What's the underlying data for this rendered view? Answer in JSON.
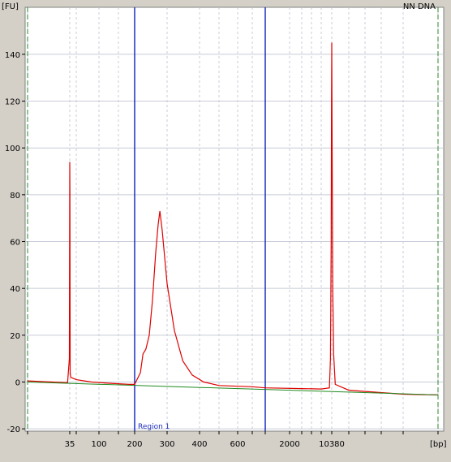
{
  "chart_data": {
    "type": "line",
    "title": "NN DNA",
    "xlabel": "[bp]",
    "ylabel": "[FU]",
    "x_scale": "sizing ladder (non-linear)",
    "ylim": [
      -20,
      150
    ],
    "y_ticks": [
      -20,
      0,
      20,
      40,
      60,
      80,
      100,
      120,
      140
    ],
    "x_tick_labels": [
      "35",
      "100",
      "200",
      "300",
      "400",
      "600",
      "2000",
      "10380"
    ],
    "grid": true,
    "region": {
      "label": "Region 1",
      "start_bp": 200,
      "end_bp": 1000,
      "color": "#1f2fbf"
    },
    "markers": {
      "lower_bp": 35,
      "upper_bp": 10380,
      "color": "#2a8a2a"
    },
    "colors": {
      "trace": "#e00000",
      "baseline": "#1f8a1f",
      "plot_bg": "#ffffff",
      "frame_bg": "#d4d0c8",
      "grid": "#c8ccd8"
    },
    "series": [
      {
        "values_points": [
          [
            20,
            0.5
          ],
          [
            34,
            -0.3
          ],
          [
            34.8,
            10
          ],
          [
            35,
            94
          ],
          [
            35.3,
            81
          ],
          [
            35.8,
            4
          ],
          [
            37,
            2
          ],
          [
            50,
            1
          ],
          [
            80,
            0
          ],
          [
            120,
            -0.5
          ],
          [
            180,
            -1
          ],
          [
            200,
            -1
          ],
          [
            215,
            4
          ],
          [
            222,
            12
          ],
          [
            230,
            14
          ],
          [
            240,
            20
          ],
          [
            250,
            35
          ],
          [
            260,
            55
          ],
          [
            268,
            67
          ],
          [
            274,
            73
          ],
          [
            282,
            65
          ],
          [
            300,
            42
          ],
          [
            320,
            22
          ],
          [
            345,
            9
          ],
          [
            375,
            3
          ],
          [
            420,
            0
          ],
          [
            500,
            -1.5
          ],
          [
            700,
            -2
          ],
          [
            1000,
            -2.5
          ],
          [
            3000,
            -2.8
          ],
          [
            7000,
            -3
          ],
          [
            9500,
            -2.5
          ],
          [
            9900,
            10
          ],
          [
            10150,
            60
          ],
          [
            10280,
            120
          ],
          [
            10380,
            145
          ],
          [
            10460,
            105
          ],
          [
            10600,
            40
          ],
          [
            10800,
            12
          ],
          [
            11200,
            -1
          ],
          [
            15000,
            -3.5
          ],
          [
            40000,
            -5.2
          ],
          [
            60000,
            -5.5
          ]
        ]
      },
      {
        "values_points": [
          [
            20,
            0
          ],
          [
            60000,
            -5.5
          ]
        ]
      }
    ]
  }
}
